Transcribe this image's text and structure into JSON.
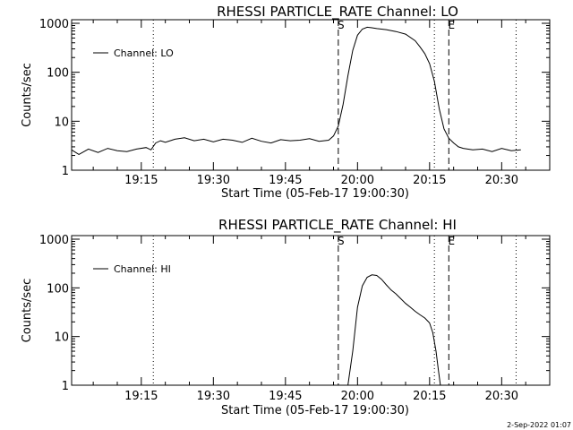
{
  "footer": {
    "timestamp": "2-Sep-2022 01:07"
  },
  "chart_data": [
    {
      "type": "line",
      "title": "RHESSI PARTICLE_RATE Channel: LO",
      "xlabel": "Start Time (05-Feb-17 19:00:30)",
      "ylabel": "Counts/sec",
      "y_scale": "log",
      "ylim": [
        1,
        1000
      ],
      "y_ticks": [
        {
          "value": 1,
          "label": "1"
        },
        {
          "value": 10,
          "label": "10"
        },
        {
          "value": 100,
          "label": "100"
        },
        {
          "value": 1000,
          "label": "1000"
        }
      ],
      "xlim": [
        "19:00:30",
        "20:40:00"
      ],
      "x_ticks": [
        "19:15",
        "19:30",
        "19:45",
        "20:00",
        "20:15",
        "20:30"
      ],
      "legend": {
        "label": "Channel: LO",
        "position": "top-left"
      },
      "markers": [
        {
          "time": "19:17:30",
          "style": "dotted",
          "label": ""
        },
        {
          "time": "19:56:00",
          "style": "dashed",
          "label": "S"
        },
        {
          "time": "20:16:00",
          "style": "dotted",
          "label": ""
        },
        {
          "time": "20:19:00",
          "style": "dashed",
          "label": "E"
        },
        {
          "time": "20:33:00",
          "style": "dotted",
          "label": ""
        }
      ],
      "series": [
        {
          "name": "Channel: LO",
          "x": [
            "19:00:30",
            "19:02:00",
            "19:04:00",
            "19:06:00",
            "19:08:00",
            "19:10:00",
            "19:12:00",
            "19:14:00",
            "19:16:00",
            "19:17:00",
            "19:18:00",
            "19:19:00",
            "19:20:00",
            "19:22:00",
            "19:24:00",
            "19:26:00",
            "19:28:00",
            "19:30:00",
            "19:32:00",
            "19:34:00",
            "19:36:00",
            "19:38:00",
            "19:40:00",
            "19:42:00",
            "19:44:00",
            "19:46:00",
            "19:48:00",
            "19:50:00",
            "19:52:00",
            "19:54:00",
            "19:55:00",
            "19:56:00",
            "19:57:00",
            "19:58:00",
            "19:59:00",
            "20:00:00",
            "20:01:00",
            "20:02:00",
            "20:03:00",
            "20:04:00",
            "20:06:00",
            "20:08:00",
            "20:10:00",
            "20:12:00",
            "20:13:00",
            "20:14:00",
            "20:15:00",
            "20:16:00",
            "20:17:00",
            "20:18:00",
            "20:19:00",
            "20:20:00",
            "20:21:00",
            "20:22:00",
            "20:24:00",
            "20:26:00",
            "20:28:00",
            "20:30:00",
            "20:32:00",
            "20:34:00"
          ],
          "y": [
            2.6,
            2.1,
            2.7,
            2.3,
            2.8,
            2.5,
            2.4,
            2.7,
            2.9,
            2.6,
            3.6,
            4.0,
            3.7,
            4.3,
            4.6,
            4.0,
            4.3,
            3.8,
            4.3,
            4.1,
            3.7,
            4.5,
            3.9,
            3.6,
            4.2,
            4.0,
            4.1,
            4.4,
            3.9,
            4.1,
            5.0,
            8,
            22,
            85,
            280,
            570,
            760,
            830,
            810,
            780,
            740,
            680,
            600,
            440,
            330,
            240,
            150,
            65,
            18,
            7,
            4.5,
            3.6,
            3.0,
            2.8,
            2.6,
            2.7,
            2.4,
            2.8,
            2.5,
            2.6
          ]
        }
      ]
    },
    {
      "type": "line",
      "title": "RHESSI PARTICLE_RATE Channel: HI",
      "xlabel": "Start Time (05-Feb-17 19:00:30)",
      "ylabel": "Counts/sec",
      "y_scale": "log",
      "ylim": [
        1,
        1000
      ],
      "y_ticks": [
        {
          "value": 1,
          "label": "1"
        },
        {
          "value": 10,
          "label": "10"
        },
        {
          "value": 100,
          "label": "100"
        },
        {
          "value": 1000,
          "label": "1000"
        }
      ],
      "xlim": [
        "19:00:30",
        "20:40:00"
      ],
      "x_ticks": [
        "19:15",
        "19:30",
        "19:45",
        "20:00",
        "20:15",
        "20:30"
      ],
      "legend": {
        "label": "Channel: HI",
        "position": "top-left"
      },
      "markers": [
        {
          "time": "19:17:30",
          "style": "dotted",
          "label": ""
        },
        {
          "time": "19:56:00",
          "style": "dashed",
          "label": "S"
        },
        {
          "time": "20:16:00",
          "style": "dotted",
          "label": ""
        },
        {
          "time": "20:19:00",
          "style": "dashed",
          "label": "E"
        },
        {
          "time": "20:33:00",
          "style": "dotted",
          "label": ""
        }
      ],
      "series": [
        {
          "name": "Channel: HI",
          "x": [
            "19:58:00",
            "19:59:00",
            "20:00:00",
            "20:01:00",
            "20:02:00",
            "20:03:00",
            "20:04:00",
            "20:05:00",
            "20:06:00",
            "20:07:00",
            "20:08:00",
            "20:09:00",
            "20:10:00",
            "20:11:00",
            "20:12:00",
            "20:13:00",
            "20:14:00",
            "20:15:00",
            "20:15:40",
            "20:16:20",
            "20:16:50",
            "20:17:15"
          ],
          "y": [
            1,
            5,
            40,
            110,
            165,
            185,
            180,
            150,
            115,
            90,
            75,
            60,
            48,
            40,
            33,
            28,
            24,
            19,
            12,
            5,
            2,
            1
          ]
        }
      ]
    }
  ]
}
